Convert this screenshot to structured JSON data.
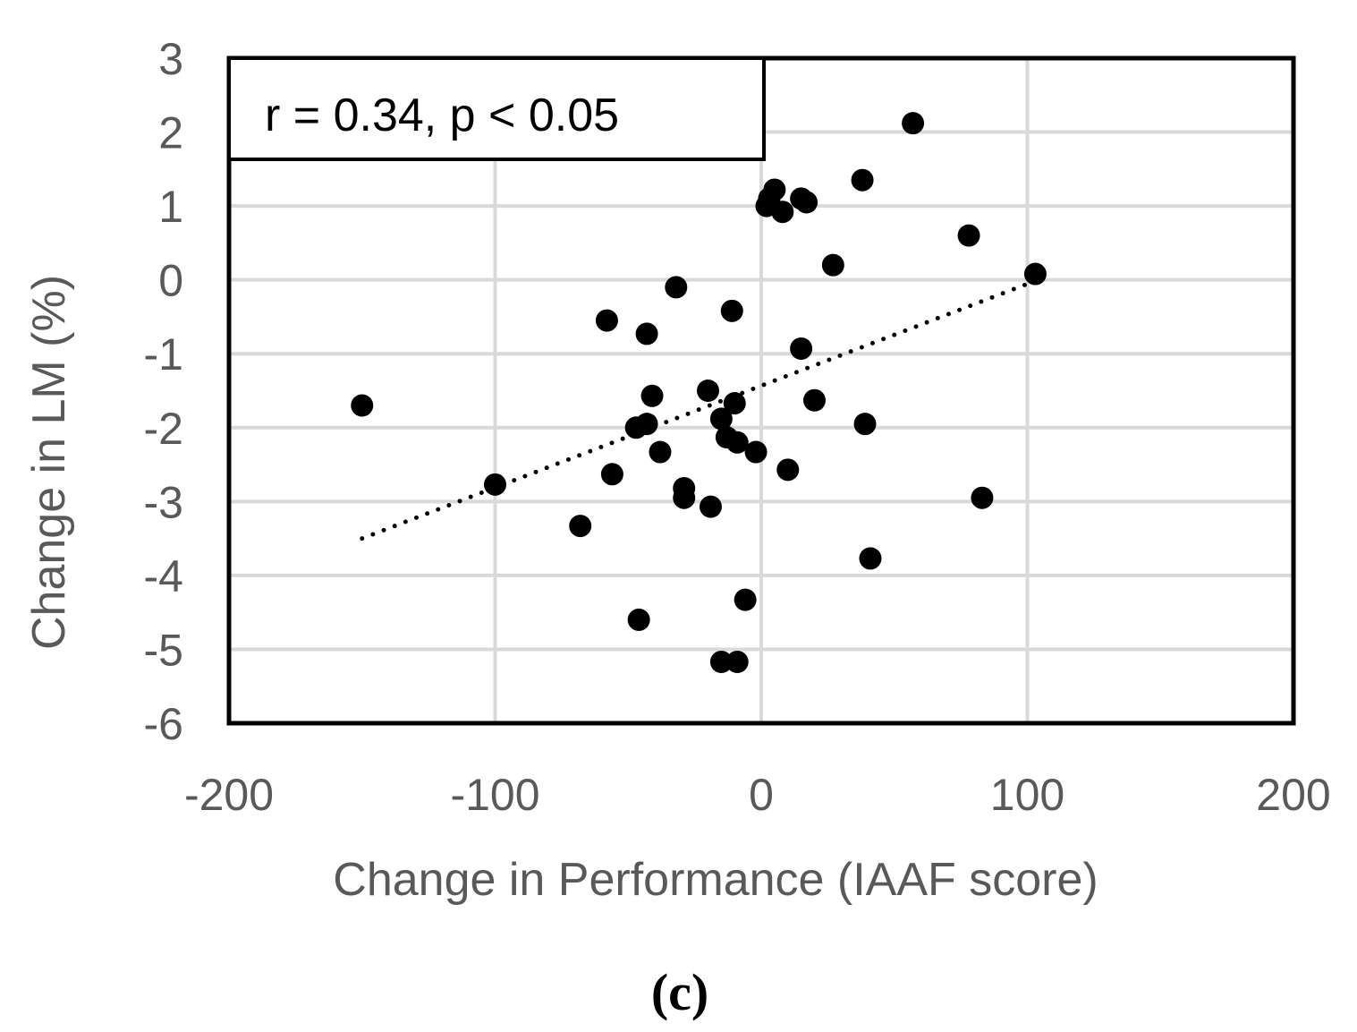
{
  "chart_data": {
    "type": "scatter",
    "xlabel": "Change in Performance (IAAF score)",
    "ylabel": "Change in LM (%)",
    "xlim": [
      -200,
      200
    ],
    "ylim": [
      -6,
      3
    ],
    "xticks": [
      -200,
      -100,
      0,
      100,
      200
    ],
    "yticks": [
      3,
      2,
      1,
      0,
      -1,
      -2,
      -3,
      -4,
      -5,
      -6
    ],
    "xtick_labels": [
      "-200",
      "-100",
      "0",
      "100",
      "200"
    ],
    "ytick_labels": [
      "3",
      "2",
      "1",
      "0",
      "-1",
      "-2",
      "-3",
      "-4",
      "-5",
      "-6"
    ],
    "grid": true,
    "annotation": "r = 0.34, p < 0.05",
    "panel_label": "(c)",
    "colors": {
      "points": "#000000",
      "grid": "#d9d9d9",
      "frame": "#000000",
      "text": "#595959"
    },
    "trendline": {
      "style": "dotted",
      "x": [
        -150,
        104
      ],
      "y": [
        -3.5,
        0.0
      ]
    },
    "points": [
      {
        "x": -150,
        "y": -1.7
      },
      {
        "x": -100,
        "y": -2.77
      },
      {
        "x": -68,
        "y": -3.33
      },
      {
        "x": -58,
        "y": -0.55
      },
      {
        "x": -56,
        "y": -2.63
      },
      {
        "x": -47,
        "y": -2.0
      },
      {
        "x": -46,
        "y": -4.6
      },
      {
        "x": -43,
        "y": -0.73
      },
      {
        "x": -43,
        "y": -1.95
      },
      {
        "x": -41,
        "y": -1.57
      },
      {
        "x": -38,
        "y": -2.33
      },
      {
        "x": -32,
        "y": -0.1
      },
      {
        "x": -29,
        "y": -2.82
      },
      {
        "x": -29,
        "y": -2.95
      },
      {
        "x": -20,
        "y": -1.5
      },
      {
        "x": -19,
        "y": -3.07
      },
      {
        "x": -15,
        "y": -1.88
      },
      {
        "x": -15,
        "y": -5.17
      },
      {
        "x": -13,
        "y": -2.13
      },
      {
        "x": -11,
        "y": -0.42
      },
      {
        "x": -10,
        "y": -1.67
      },
      {
        "x": -9,
        "y": -2.2
      },
      {
        "x": -9,
        "y": -5.17
      },
      {
        "x": -6,
        "y": -4.33
      },
      {
        "x": -2,
        "y": -2.33
      },
      {
        "x": 2,
        "y": 1.0
      },
      {
        "x": 3,
        "y": 1.1
      },
      {
        "x": 5,
        "y": 1.22
      },
      {
        "x": 8,
        "y": 0.92
      },
      {
        "x": 10,
        "y": -2.57
      },
      {
        "x": 15,
        "y": -0.93
      },
      {
        "x": 15,
        "y": 1.1
      },
      {
        "x": 17,
        "y": 1.05
      },
      {
        "x": 20,
        "y": -1.63
      },
      {
        "x": 27,
        "y": 0.2
      },
      {
        "x": 38,
        "y": 1.35
      },
      {
        "x": 39,
        "y": -1.95
      },
      {
        "x": 41,
        "y": -3.77
      },
      {
        "x": 57,
        "y": 2.12
      },
      {
        "x": 78,
        "y": 0.6
      },
      {
        "x": 83,
        "y": -2.95
      },
      {
        "x": 103,
        "y": 0.08
      }
    ]
  }
}
